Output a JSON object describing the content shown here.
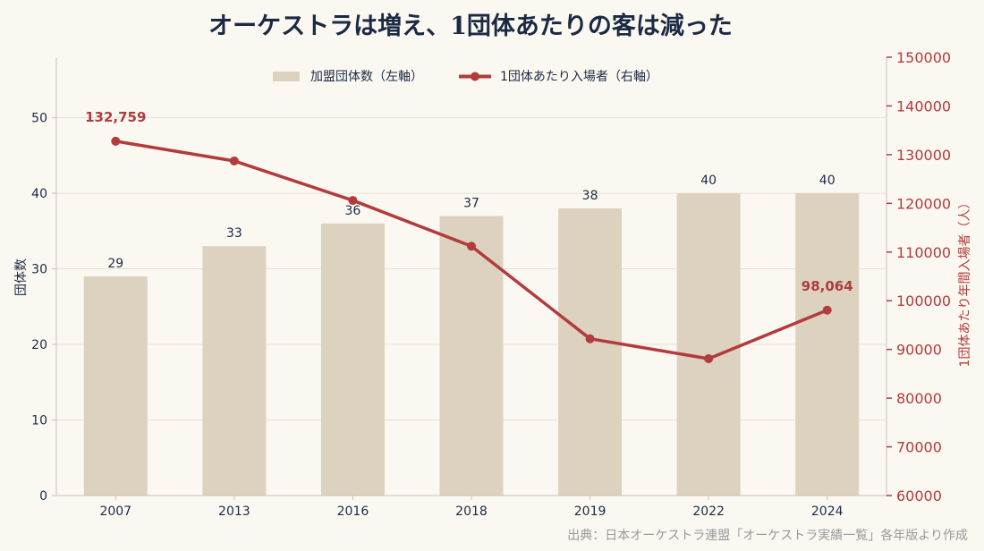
{
  "chart_data": {
    "type": "bar+line",
    "title": "オーケストラは増え、1団体あたりの客は減った",
    "categories": [
      "2007",
      "2013",
      "2016",
      "2018",
      "2019",
      "2022",
      "2024"
    ],
    "series": [
      {
        "name": "加盟団体数（左軸）",
        "type": "bar",
        "axis": "left",
        "values": [
          29,
          33,
          36,
          37,
          38,
          40,
          40
        ]
      },
      {
        "name": "1団体あたり入場者（右軸）",
        "type": "line",
        "axis": "right",
        "values": [
          132759,
          128700,
          120600,
          111200,
          92200,
          88100,
          98064
        ]
      }
    ],
    "ylabel_left": "団体数",
    "ylabel_right": "1団体あたり年間入場者（人）",
    "ylim_left": [
      0,
      58
    ],
    "yticks_left": [
      0,
      10,
      20,
      30,
      40,
      50
    ],
    "ylim_right": [
      60000,
      150000
    ],
    "yticks_right": [
      60000,
      70000,
      80000,
      90000,
      100000,
      110000,
      120000,
      130000,
      140000,
      150000
    ],
    "point_labels": [
      {
        "index": 0,
        "text": "132,759"
      },
      {
        "index": 6,
        "text": "98,064"
      }
    ],
    "grid": "horizontal",
    "legend_position": "top-center",
    "source": "出典：日本オーケストラ連盟「オーケストラ実績一覧」各年版より作成",
    "colors": {
      "bar": "#ddd2c0",
      "line": "#b23b3b",
      "text": "#1b2a44",
      "grid": "#e8e2d6",
      "axis": "#c8c2b6",
      "source": "#999999"
    }
  }
}
